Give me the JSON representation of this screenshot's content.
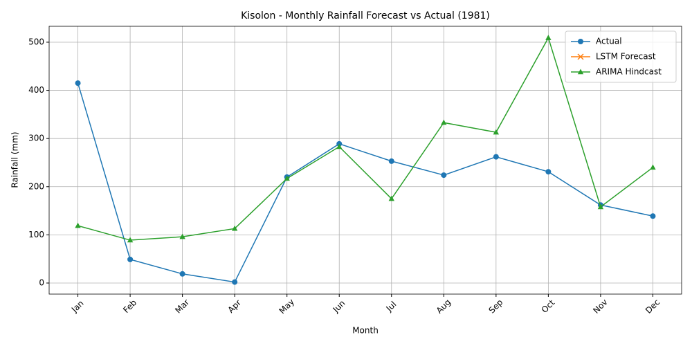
{
  "chart_data": {
    "type": "line",
    "title": "Kisolon - Monthly Rainfall Forecast vs Actual (1981)",
    "x_label": "Month",
    "y_label": "Rainfall (mm)",
    "categories": [
      "Jan",
      "Feb",
      "Mar",
      "Apr",
      "May",
      "Jun",
      "Jul",
      "Aug",
      "Sep",
      "Oct",
      "Nov",
      "Dec"
    ],
    "series": [
      {
        "name": "Actual",
        "color": "#1f77b4",
        "marker": "circle",
        "values": [
          415,
          49,
          19,
          2,
          220,
          289,
          253,
          224,
          262,
          231,
          162,
          139
        ]
      },
      {
        "name": "LSTM Forecast",
        "color": "#ff7f0e",
        "marker": "x",
        "values": [
          null,
          null,
          null,
          null,
          null,
          null,
          null,
          null,
          null,
          null,
          null,
          null
        ]
      },
      {
        "name": "ARIMA Hindcast",
        "color": "#2ca02c",
        "marker": "triangle",
        "values": [
          119,
          89,
          96,
          113,
          217,
          283,
          175,
          333,
          313,
          509,
          158,
          240
        ]
      }
    ],
    "ylim": [
      -23,
      533
    ],
    "yticks": [
      0,
      100,
      200,
      300,
      400,
      500
    ],
    "grid": true,
    "legend": "upper right"
  }
}
